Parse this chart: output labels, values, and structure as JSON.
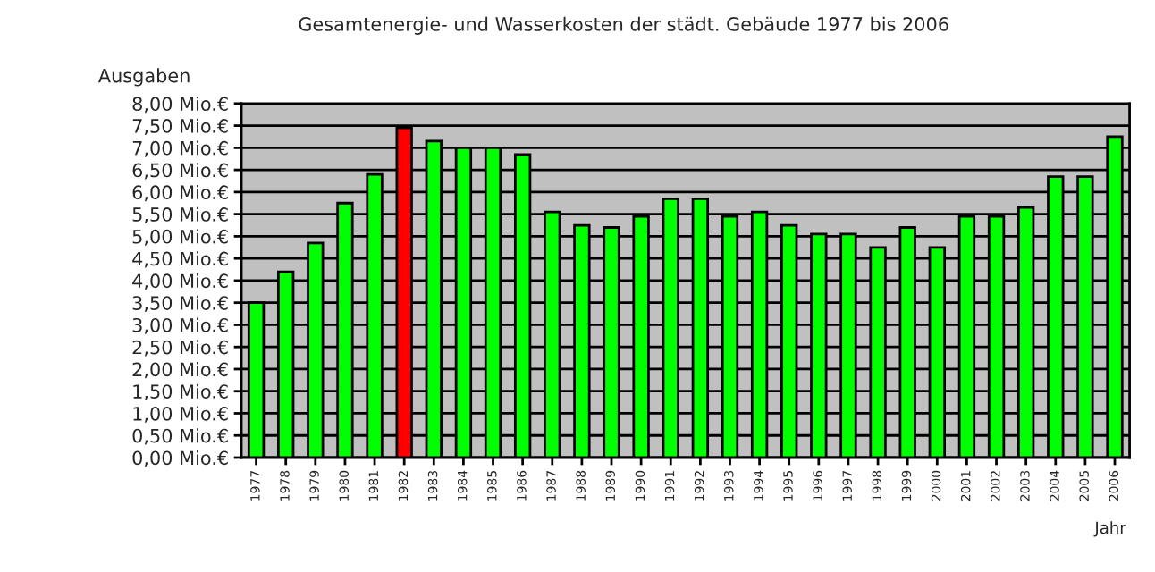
{
  "chart_data": {
    "type": "bar",
    "title": "Gesamtenergie- und Wasserkosten der städt. Gebäude 1977 bis 2006",
    "ylabel": "Ausgaben",
    "xlabel": "Jahr",
    "categories": [
      "1977",
      "1978",
      "1979",
      "1980",
      "1981",
      "1982",
      "1983",
      "1984",
      "1985",
      "1986",
      "1987",
      "1988",
      "1989",
      "1990",
      "1991",
      "1992",
      "1993",
      "1994",
      "1995",
      "1996",
      "1997",
      "1998",
      "1999",
      "2000",
      "2001",
      "2002",
      "2003",
      "2004",
      "2005",
      "2006"
    ],
    "values": [
      3.5,
      4.2,
      4.85,
      5.75,
      6.4,
      7.45,
      7.15,
      7.0,
      7.0,
      6.85,
      5.55,
      5.25,
      5.2,
      5.45,
      5.85,
      5.85,
      5.45,
      5.55,
      5.25,
      5.05,
      5.05,
      4.75,
      5.2,
      4.75,
      5.45,
      5.45,
      5.65,
      6.35,
      6.35,
      7.25
    ],
    "colors": [
      "#00ff00",
      "#00ff00",
      "#00ff00",
      "#00ff00",
      "#00ff00",
      "#ff0000",
      "#00ff00",
      "#00ff00",
      "#00ff00",
      "#00ff00",
      "#00ff00",
      "#00ff00",
      "#00ff00",
      "#00ff00",
      "#00ff00",
      "#00ff00",
      "#00ff00",
      "#00ff00",
      "#00ff00",
      "#00ff00",
      "#00ff00",
      "#00ff00",
      "#00ff00",
      "#00ff00",
      "#00ff00",
      "#00ff00",
      "#00ff00",
      "#00ff00",
      "#00ff00",
      "#00ff00"
    ],
    "ylim": [
      0,
      8
    ],
    "yticks": [
      {
        "value": 0,
        "label": "0,00 Mio.€"
      },
      {
        "value": 0.5,
        "label": "0,50 Mio.€"
      },
      {
        "value": 1,
        "label": "1,00 Mio.€"
      },
      {
        "value": 1.5,
        "label": "1,50 Mio.€"
      },
      {
        "value": 2,
        "label": "2,00 Mio.€"
      },
      {
        "value": 2.5,
        "label": "2,50 Mio.€"
      },
      {
        "value": 3,
        "label": "3,00 Mio.€"
      },
      {
        "value": 3.5,
        "label": "3,50 Mio.€"
      },
      {
        "value": 4,
        "label": "4,00 Mio.€"
      },
      {
        "value": 4.5,
        "label": "4,50 Mio.€"
      },
      {
        "value": 5,
        "label": "5,00 Mio.€"
      },
      {
        "value": 5.5,
        "label": "5,50 Mio.€"
      },
      {
        "value": 6,
        "label": "6,00 Mio.€"
      },
      {
        "value": 6.5,
        "label": "6,50 Mio.€"
      },
      {
        "value": 7,
        "label": "7,00 Mio.€"
      },
      {
        "value": 7.5,
        "label": "7,50 Mio.€"
      },
      {
        "value": 8,
        "label": "8,00 Mio.€"
      }
    ],
    "grid": "y"
  }
}
